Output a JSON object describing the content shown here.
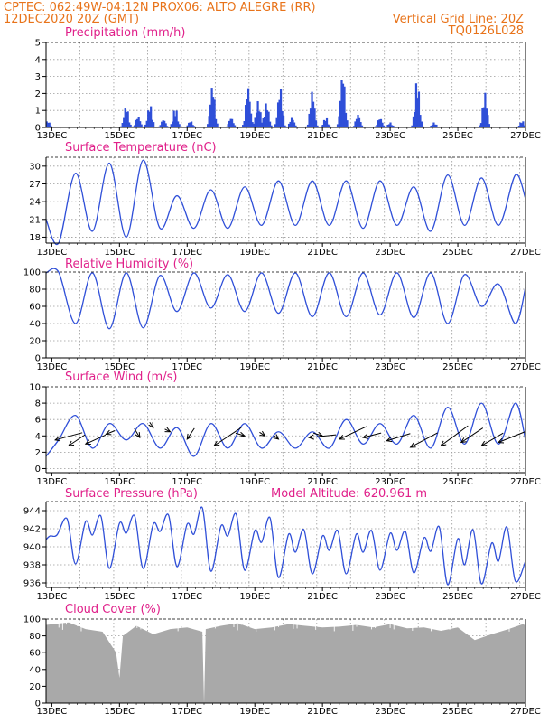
{
  "header": {
    "line1_left": "CPTEC:  062:49W-04:12N   PROX06: ALTO ALEGRE (RR)",
    "line2_left": "12DEC2020 20Z (GMT)",
    "line2_right": "Vertical Grid Line: 20Z",
    "line3_right": "TQ0126L028"
  },
  "colors": {
    "header": "#e8731a",
    "title": "#e0208a",
    "series": "#2f4fd8",
    "cloud": "#a9a9a9"
  },
  "chart_data": [
    {
      "type": "bar",
      "title": "Precipitation (mm/h)",
      "ylim": [
        0,
        5
      ],
      "yticks": [
        0,
        1,
        2,
        3,
        4,
        5
      ],
      "xticks": [
        "13DEC",
        "15DEC",
        "17DEC",
        "19DEC",
        "21DEC",
        "23DEC",
        "25DEC",
        "27DEC"
      ],
      "x_days": [
        12.83,
        27
      ],
      "bursts": [
        {
          "day": 12.88,
          "peak": 0.4
        },
        {
          "day": 15.2,
          "peak": 1.3
        },
        {
          "day": 15.55,
          "peak": 0.7
        },
        {
          "day": 15.9,
          "peak": 1.4
        },
        {
          "day": 16.3,
          "peak": 0.5
        },
        {
          "day": 16.65,
          "peak": 1.2
        },
        {
          "day": 17.1,
          "peak": 0.4
        },
        {
          "day": 17.75,
          "peak": 2.6
        },
        {
          "day": 18.3,
          "peak": 0.6
        },
        {
          "day": 18.8,
          "peak": 2.5
        },
        {
          "day": 19.1,
          "peak": 1.6
        },
        {
          "day": 19.35,
          "peak": 1.5
        },
        {
          "day": 19.75,
          "peak": 2.4
        },
        {
          "day": 20.1,
          "peak": 0.6
        },
        {
          "day": 20.7,
          "peak": 2.2
        },
        {
          "day": 21.1,
          "peak": 0.6
        },
        {
          "day": 21.6,
          "peak": 3.4
        },
        {
          "day": 22.05,
          "peak": 0.8
        },
        {
          "day": 22.7,
          "peak": 0.6
        },
        {
          "day": 23.0,
          "peak": 0.3
        },
        {
          "day": 23.8,
          "peak": 2.9
        },
        {
          "day": 24.3,
          "peak": 0.3
        },
        {
          "day": 25.8,
          "peak": 2.1
        },
        {
          "day": 26.9,
          "peak": 0.4
        }
      ]
    },
    {
      "type": "line",
      "title": "Surface Temperature (nC)",
      "ylim": [
        17,
        31.5
      ],
      "yticks": [
        18,
        21,
        24,
        27,
        30
      ],
      "xticks": [
        "13DEC",
        "15DEC",
        "17DEC",
        "19DEC",
        "21DEC",
        "23DEC",
        "25DEC",
        "27DEC"
      ],
      "x": [
        12.83,
        13.2,
        13.7,
        14.2,
        14.7,
        15.2,
        15.7,
        16.2,
        16.7,
        17.2,
        17.7,
        18.2,
        18.7,
        19.2,
        19.7,
        20.2,
        20.7,
        21.2,
        21.7,
        22.2,
        22.7,
        23.2,
        23.7,
        24.2,
        24.7,
        25.2,
        25.7,
        26.2,
        26.7,
        27.0
      ],
      "y": [
        21,
        17,
        28.8,
        19,
        30.5,
        18,
        31,
        19.5,
        25,
        19.5,
        26,
        19.5,
        26.5,
        20,
        27.5,
        20,
        27.5,
        20,
        27.5,
        19.5,
        27.5,
        20,
        26.5,
        19,
        28.5,
        20,
        28,
        20,
        28.5,
        24.5
      ]
    },
    {
      "type": "line",
      "title": "Relative Humidity (%)",
      "ylim": [
        0,
        100
      ],
      "yticks": [
        0,
        20,
        40,
        60,
        80,
        100
      ],
      "xticks": [
        "13DEC",
        "15DEC",
        "17DEC",
        "19DEC",
        "21DEC",
        "23DEC",
        "25DEC",
        "27DEC"
      ],
      "x": [
        12.83,
        13.2,
        13.7,
        14.2,
        14.7,
        15.2,
        15.7,
        16.2,
        16.7,
        17.2,
        17.7,
        18.2,
        18.7,
        19.2,
        19.7,
        20.2,
        20.7,
        21.2,
        21.7,
        22.2,
        22.7,
        23.2,
        23.7,
        24.2,
        24.7,
        25.2,
        25.7,
        26.2,
        26.7,
        27.0
      ],
      "y": [
        99,
        100,
        40,
        99,
        34,
        99,
        35,
        96,
        54,
        99,
        58,
        97,
        54,
        99,
        52,
        99,
        48,
        99,
        48,
        99,
        50,
        99,
        47,
        99,
        40,
        97,
        60,
        86,
        40,
        82
      ]
    },
    {
      "type": "line",
      "title": "Surface Wind (m/s)",
      "ylim": [
        -0.5,
        10
      ],
      "yticks": [
        0,
        2,
        4,
        6,
        8,
        10
      ],
      "xticks": [
        "13DEC",
        "15DEC",
        "17DEC",
        "19DEC",
        "21DEC",
        "23DEC",
        "25DEC",
        "27DEC"
      ],
      "x": [
        12.83,
        13.2,
        13.7,
        14.2,
        14.7,
        15.2,
        15.7,
        16.2,
        16.7,
        17.2,
        17.7,
        18.2,
        18.7,
        19.2,
        19.7,
        20.2,
        20.7,
        21.2,
        21.7,
        22.2,
        22.7,
        23.2,
        23.7,
        24.2,
        24.7,
        25.2,
        25.7,
        26.2,
        26.7,
        27.0
      ],
      "y": [
        1.5,
        3.5,
        6.5,
        2.5,
        5.5,
        3.5,
        5.5,
        2.5,
        5,
        1.5,
        5.5,
        2.5,
        5.5,
        2.5,
        4.5,
        2.5,
        4.5,
        2.5,
        6,
        3,
        5.5,
        3,
        6.5,
        2.5,
        7.5,
        3,
        8,
        3,
        8,
        3.5
      ],
      "arrows": [
        {
          "day": 13.1,
          "speed": 3.5,
          "dx": 30,
          "dy": -8
        },
        {
          "day": 13.5,
          "speed": 2.8,
          "dx": 18,
          "dy": -12
        },
        {
          "day": 14.0,
          "speed": 3.0,
          "dx": 22,
          "dy": -10
        },
        {
          "day": 14.6,
          "speed": 4.2,
          "dx": 10,
          "dy": -4
        },
        {
          "day": 15.6,
          "speed": 3.8,
          "dx": -6,
          "dy": -10
        },
        {
          "day": 16.0,
          "speed": 5.0,
          "dx": -4,
          "dy": -6
        },
        {
          "day": 16.5,
          "speed": 4.5,
          "dx": -6,
          "dy": -3
        },
        {
          "day": 17.0,
          "speed": 3.6,
          "dx": 8,
          "dy": -12
        },
        {
          "day": 17.8,
          "speed": 2.8,
          "dx": 30,
          "dy": -20
        },
        {
          "day": 18.7,
          "speed": 4.0,
          "dx": -10,
          "dy": -3
        },
        {
          "day": 19.3,
          "speed": 4.0,
          "dx": -6,
          "dy": -4
        },
        {
          "day": 19.7,
          "speed": 3.6,
          "dx": -5,
          "dy": -4
        },
        {
          "day": 20.6,
          "speed": 3.8,
          "dx": 30,
          "dy": -3
        },
        {
          "day": 21.0,
          "speed": 4.0,
          "dx": -10,
          "dy": -3
        },
        {
          "day": 21.5,
          "speed": 3.6,
          "dx": 30,
          "dy": -14
        },
        {
          "day": 22.2,
          "speed": 3.8,
          "dx": 20,
          "dy": -5
        },
        {
          "day": 22.9,
          "speed": 3.4,
          "dx": 26,
          "dy": -8
        },
        {
          "day": 23.6,
          "speed": 2.6,
          "dx": 30,
          "dy": -16
        },
        {
          "day": 24.5,
          "speed": 2.8,
          "dx": 30,
          "dy": -22
        },
        {
          "day": 25.1,
          "speed": 3.2,
          "dx": 24,
          "dy": -16
        },
        {
          "day": 25.7,
          "speed": 2.8,
          "dx": 24,
          "dy": -14
        },
        {
          "day": 26.2,
          "speed": 3.2,
          "dx": 30,
          "dy": -12
        }
      ]
    },
    {
      "type": "line",
      "title": "Surface Pressure (hPa)",
      "annotation": "Model Altitude: 620.961  m",
      "ylim": [
        935.5,
        945
      ],
      "yticks": [
        936,
        938,
        940,
        942,
        944
      ],
      "xticks": [
        "13DEC",
        "15DEC",
        "17DEC",
        "19DEC",
        "21DEC",
        "23DEC",
        "25DEC",
        "27DEC"
      ],
      "x": [
        12.83,
        12.95,
        13.15,
        13.45,
        13.7,
        14.0,
        14.2,
        14.45,
        14.7,
        15.0,
        15.2,
        15.45,
        15.7,
        16.0,
        16.2,
        16.45,
        16.7,
        17.0,
        17.2,
        17.45,
        17.7,
        18.0,
        18.2,
        18.45,
        18.7,
        19.0,
        19.2,
        19.45,
        19.7,
        20.0,
        20.2,
        20.45,
        20.7,
        21.0,
        21.2,
        21.45,
        21.7,
        22.0,
        22.2,
        22.45,
        22.7,
        23.0,
        23.2,
        23.45,
        23.7,
        24.0,
        24.2,
        24.45,
        24.7,
        25.0,
        25.2,
        25.45,
        25.7,
        26.0,
        26.2,
        26.45,
        26.7,
        27.0
      ],
      "y": [
        940.8,
        941.2,
        941.3,
        943.1,
        938.1,
        942.8,
        941.3,
        943.4,
        937.6,
        942.6,
        941.5,
        943.4,
        937.6,
        942.5,
        941.7,
        943.5,
        937.8,
        942.5,
        941.4,
        944.3,
        937.3,
        942.3,
        941.2,
        943.6,
        937.4,
        941.8,
        940.5,
        943.2,
        936.6,
        941.4,
        939.4,
        941.9,
        937.0,
        941.2,
        939.6,
        941.8,
        937.0,
        941.4,
        939.4,
        941.8,
        937.4,
        941.5,
        939.6,
        941.7,
        937.1,
        941.0,
        939.5,
        942.2,
        935.8,
        940.9,
        938.0,
        941.9,
        935.9,
        940.4,
        938.4,
        942.2,
        936.2,
        938.4
      ]
    },
    {
      "type": "area",
      "title": "Cloud Cover (%)",
      "ylim": [
        0,
        100
      ],
      "yticks": [
        0,
        20,
        40,
        60,
        80,
        100
      ],
      "xticks": [
        "13DEC",
        "15DEC",
        "17DEC",
        "19DEC",
        "21DEC",
        "23DEC",
        "25DEC",
        "27DEC"
      ],
      "x": [
        12.83,
        13.5,
        14.0,
        14.5,
        14.9,
        15.0,
        15.1,
        15.5,
        16.0,
        16.5,
        17.0,
        17.45,
        17.5,
        17.55,
        18.0,
        18.5,
        19.0,
        19.5,
        20.0,
        20.5,
        21.0,
        21.5,
        22.0,
        22.5,
        23.0,
        23.5,
        24.0,
        24.5,
        25.0,
        25.5,
        26.0,
        26.5,
        27.0
      ],
      "y": [
        93,
        96,
        88,
        85,
        60,
        30,
        80,
        92,
        82,
        88,
        90,
        85,
        0,
        88,
        92,
        95,
        88,
        90,
        94,
        92,
        90,
        91,
        93,
        90,
        94,
        89,
        90,
        86,
        90,
        75,
        82,
        88,
        95
      ]
    }
  ]
}
